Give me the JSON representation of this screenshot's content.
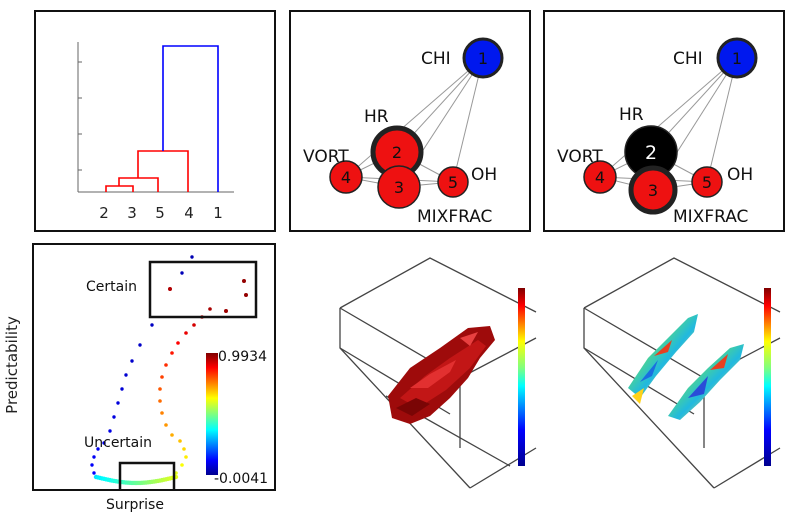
{
  "dendrogram": {
    "leaf_labels": [
      "2",
      "3",
      "5",
      "4",
      "1"
    ],
    "colors": {
      "red_cluster": "#ff0000",
      "root_link": "#0000ff",
      "axis": "#444444"
    }
  },
  "graphs": [
    {
      "nodes": [
        {
          "id": "1",
          "name": "CHI",
          "fill": "#0018ee",
          "ring": "thin"
        },
        {
          "id": "2",
          "name": "HR",
          "fill": "#ee1111",
          "ring": "thick"
        },
        {
          "id": "3",
          "name": "MIXFRAC",
          "fill": "#ee1111",
          "ring": "thin"
        },
        {
          "id": "4",
          "name": "VORT",
          "fill": "#ee1111",
          "ring": "thin"
        },
        {
          "id": "5",
          "name": "OH",
          "fill": "#ee1111",
          "ring": "thin"
        }
      ]
    },
    {
      "nodes": [
        {
          "id": "1",
          "name": "CHI",
          "fill": "#0018ee",
          "ring": "thin"
        },
        {
          "id": "2",
          "name": "HR",
          "fill": "#000000",
          "ring": "thin"
        },
        {
          "id": "3",
          "name": "MIXFRAC",
          "fill": "#ee1111",
          "ring": "thick"
        },
        {
          "id": "4",
          "name": "VORT",
          "fill": "#ee1111",
          "ring": "thin"
        },
        {
          "id": "5",
          "name": "OH",
          "fill": "#ee1111",
          "ring": "thin"
        }
      ]
    }
  ],
  "predictability": {
    "ylabel": "Predictability",
    "certain_label": "Certain",
    "uncertain_label": "Uncertain",
    "surprise_label": "Surprise",
    "colorbar_max": "0.9934",
    "colorbar_min": "-0.0041"
  },
  "volume_renders": [
    {
      "style": "uniform dark red isosurface"
    },
    {
      "style": "rainbow colored isosurface"
    }
  ]
}
